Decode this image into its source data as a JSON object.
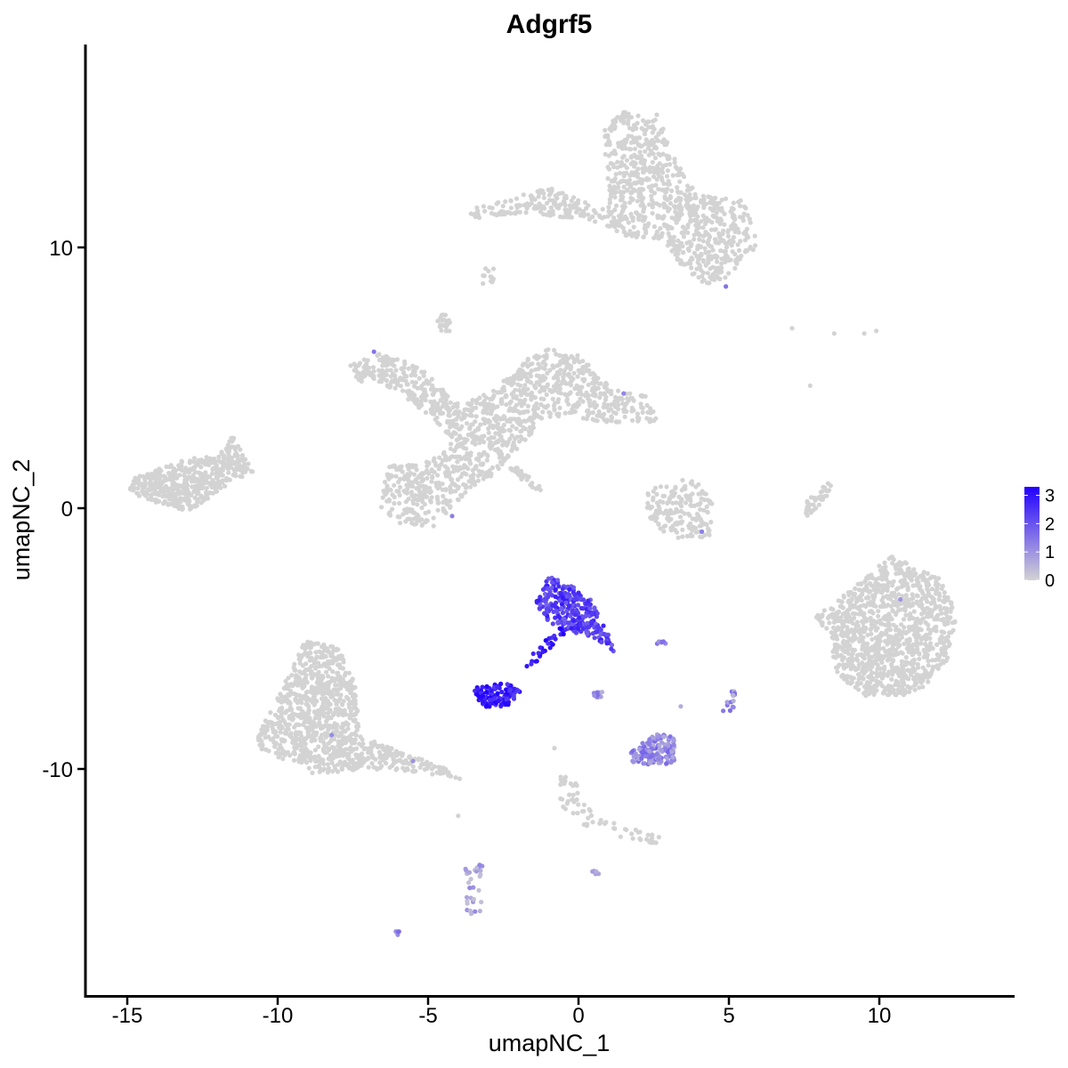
{
  "chart_data": {
    "type": "scatter",
    "title": "Adgrf5",
    "xlabel": "umapNC_1",
    "ylabel": "umapNC_2",
    "xlim": [
      -16.4,
      14.4
    ],
    "ylim": [
      -18.5,
      17.7
    ],
    "xticks": [
      -15,
      -10,
      -5,
      0,
      5,
      10
    ],
    "yticks": [
      -10,
      0,
      10
    ],
    "grid": false,
    "legend": {
      "placement": "right",
      "type": "continuous colorbar",
      "min": 0,
      "max": 3.3,
      "ticks": [
        0,
        1,
        2,
        3
      ],
      "low_color": "#d3d3d3",
      "high_color": "#2200ff"
    },
    "colors": {
      "low": "#d3d3d3",
      "high": "#2200ff",
      "point_size_note": "small dots"
    },
    "clusters": [
      {
        "id": "top-right-large",
        "expression": 0,
        "n": 1000,
        "shape": [
          [
            -3.6,
            11.5
          ],
          [
            -1,
            12.3
          ],
          [
            1,
            11.4
          ],
          [
            0.8,
            14.6
          ],
          [
            1.5,
            15.2
          ],
          [
            2.7,
            15.1
          ],
          [
            3.1,
            13.6
          ],
          [
            4,
            12
          ],
          [
            5.5,
            11.8
          ],
          [
            6,
            10.1
          ],
          [
            5.4,
            9.5
          ],
          [
            5,
            8.8
          ],
          [
            4.2,
            8.6
          ],
          [
            3.5,
            9.2
          ],
          [
            2.8,
            10.3
          ],
          [
            1.9,
            10.3
          ],
          [
            1.2,
            10.6
          ],
          [
            0.5,
            11
          ],
          [
            -1,
            11.2
          ],
          [
            -2.2,
            11.3
          ],
          [
            -3,
            11.2
          ],
          [
            -3.6,
            11
          ]
        ]
      },
      {
        "id": "left-far",
        "expression": 0,
        "n": 500,
        "shape": [
          [
            -14.9,
            1.1
          ],
          [
            -13,
            1.9
          ],
          [
            -12,
            2
          ],
          [
            -11.5,
            2.8
          ],
          [
            -10.8,
            1.4
          ],
          [
            -11.8,
            0.8
          ],
          [
            -12.5,
            0.2
          ],
          [
            -13,
            -0.1
          ],
          [
            -14,
            0.2
          ],
          [
            -14.9,
            0.6
          ]
        ]
      },
      {
        "id": "center-star",
        "expression": 0,
        "n": 1300,
        "shape": [
          [
            -7.6,
            5.5
          ],
          [
            -6.5,
            6
          ],
          [
            -5,
            5.2
          ],
          [
            -4,
            4
          ],
          [
            -3,
            4.4
          ],
          [
            -1.2,
            6.2
          ],
          [
            0,
            5.9
          ],
          [
            1,
            4.7
          ],
          [
            2.5,
            4.2
          ],
          [
            2.6,
            3.3
          ],
          [
            1,
            3.3
          ],
          [
            -1,
            3.5
          ],
          [
            -2.2,
            2.1
          ],
          [
            -3,
            1
          ],
          [
            -3.6,
            0.8
          ],
          [
            -4.3,
            -0.1
          ],
          [
            -4.8,
            -0.7
          ],
          [
            -6,
            -0.6
          ],
          [
            -6.6,
            0.1
          ],
          [
            -6.4,
            1.6
          ],
          [
            -5,
            1.8
          ],
          [
            -4.2,
            2.6
          ],
          [
            -4.9,
            3.5
          ],
          [
            -6.2,
            4.6
          ],
          [
            -7.4,
            4.9
          ]
        ]
      },
      {
        "id": "small-arc",
        "expression": 0,
        "n": 180,
        "shape": [
          [
            2.3,
            0.7
          ],
          [
            3.8,
            1.2
          ],
          [
            4.5,
            0.2
          ],
          [
            4.4,
            -1.1
          ],
          [
            3.2,
            -1.2
          ],
          [
            2.2,
            -0.4
          ]
        ]
      },
      {
        "id": "right-large",
        "expression": 0,
        "n": 1100,
        "shape": [
          [
            7.8,
            -4.2
          ],
          [
            9.2,
            -3
          ],
          [
            10.4,
            -1.8
          ],
          [
            12,
            -2.7
          ],
          [
            12.6,
            -4
          ],
          [
            12.3,
            -5.8
          ],
          [
            11.2,
            -7.2
          ],
          [
            9.4,
            -7.2
          ],
          [
            8.5,
            -6.2
          ],
          [
            8.4,
            -4.8
          ]
        ]
      },
      {
        "id": "bottom-left",
        "expression": 0,
        "n": 1000,
        "shape": [
          [
            -10.7,
            -8.8
          ],
          [
            -9.8,
            -6.8
          ],
          [
            -9.1,
            -5.1
          ],
          [
            -8,
            -5.3
          ],
          [
            -7.4,
            -6.7
          ],
          [
            -7.3,
            -8.7
          ],
          [
            -6,
            -9.3
          ],
          [
            -4.5,
            -9.9
          ],
          [
            -3.9,
            -10.4
          ],
          [
            -5.5,
            -10.1
          ],
          [
            -7,
            -10
          ],
          [
            -8.8,
            -10.2
          ],
          [
            -10.6,
            -9.2
          ]
        ]
      },
      {
        "id": "expressing-upper",
        "expression": 2.3,
        "n": 280,
        "shape": [
          [
            -1.4,
            -3.6
          ],
          [
            -1,
            -2.6
          ],
          [
            -0.2,
            -3
          ],
          [
            0.5,
            -3.6
          ],
          [
            0.7,
            -4.2
          ],
          [
            1,
            -4.8
          ],
          [
            1.2,
            -5.6
          ],
          [
            0.6,
            -5
          ],
          [
            -0.4,
            -4.7
          ],
          [
            -1.1,
            -4.3
          ]
        ]
      },
      {
        "id": "expressing-stalk",
        "expression": 3.0,
        "n": 28,
        "shape": [
          [
            -0.7,
            -4.6
          ],
          [
            -0.3,
            -4.6
          ],
          [
            -1.6,
            -6.2
          ],
          [
            -2.1,
            -6.3
          ]
        ]
      },
      {
        "id": "expressing-blob",
        "expression": 2.9,
        "n": 120,
        "shape": [
          [
            -3.5,
            -6.9
          ],
          [
            -2.4,
            -6.7
          ],
          [
            -1.9,
            -7
          ],
          [
            -2.2,
            -7.5
          ],
          [
            -3,
            -7.7
          ],
          [
            -3.5,
            -7.3
          ]
        ]
      },
      {
        "id": "mid-purple",
        "expression": 1.2,
        "n": 150,
        "shape": [
          [
            1.7,
            -9.4
          ],
          [
            2.5,
            -8.6
          ],
          [
            3.2,
            -8.8
          ],
          [
            3.2,
            -9.8
          ],
          [
            2.2,
            -9.9
          ],
          [
            1.7,
            -9.7
          ]
        ]
      },
      {
        "id": "gray-stem",
        "expression": 0,
        "n": 70,
        "shape": [
          [
            -0.6,
            -10
          ],
          [
            -0.2,
            -10.3
          ],
          [
            0.5,
            -11.8
          ],
          [
            2.7,
            -12.6
          ],
          [
            2.6,
            -12.9
          ],
          [
            0.2,
            -12.2
          ],
          [
            -0.6,
            -11.4
          ]
        ]
      },
      {
        "id": "lower-pale",
        "expression": 0.6,
        "n": 35,
        "shape": [
          [
            -3.8,
            -13.8
          ],
          [
            -3.2,
            -13.6
          ],
          [
            -3.2,
            -15.5
          ],
          [
            -3.7,
            -15.6
          ]
        ]
      },
      {
        "id": "upper-small",
        "expression": 0,
        "n": 25,
        "shape": [
          [
            -4.7,
            7.3
          ],
          [
            -4.3,
            7.6
          ],
          [
            -4.2,
            6.8
          ],
          [
            -4.6,
            6.7
          ]
        ]
      },
      {
        "id": "upper-small-2",
        "expression": 0,
        "n": 12,
        "shape": [
          [
            -3.2,
            9.2
          ],
          [
            -2.8,
            9.2
          ],
          [
            -2.8,
            8.6
          ],
          [
            -3.2,
            8.6
          ]
        ]
      },
      {
        "id": "thin-streak",
        "expression": 0,
        "n": 30,
        "shape": [
          [
            -2.2,
            1.7
          ],
          [
            -1.2,
            0.8
          ],
          [
            -1.3,
            0.6
          ],
          [
            -2.3,
            1.4
          ]
        ]
      },
      {
        "id": "right-thin",
        "expression": 0,
        "n": 40,
        "shape": [
          [
            7.6,
            0.3
          ],
          [
            8.5,
            1.2
          ],
          [
            8.2,
            0.3
          ],
          [
            7.5,
            -0.4
          ]
        ]
      },
      {
        "id": "small-right-purple",
        "expression": 1.0,
        "n": 15,
        "shape": [
          [
            4.8,
            -7.2
          ],
          [
            5.2,
            -6.9
          ],
          [
            5.2,
            -7.9
          ],
          [
            4.8,
            -7.8
          ]
        ]
      },
      {
        "id": "tiny-purple-1",
        "expression": 1.5,
        "n": 6,
        "shape": [
          [
            2.6,
            -5.1
          ],
          [
            2.9,
            -5.1
          ],
          [
            2.9,
            -5.2
          ],
          [
            2.6,
            -5.2
          ]
        ]
      },
      {
        "id": "tiny-gray-bottom",
        "expression": 0.5,
        "n": 5,
        "shape": [
          [
            0.4,
            -13.9
          ],
          [
            0.7,
            -13.9
          ],
          [
            0.7,
            -14.1
          ],
          [
            0.4,
            -14.1
          ]
        ]
      },
      {
        "id": "tiny-purple-2",
        "expression": 1.4,
        "n": 4,
        "shape": [
          [
            -6.1,
            -16.2
          ],
          [
            -5.9,
            -16.2
          ],
          [
            -5.9,
            -16.4
          ],
          [
            -6.1,
            -16.4
          ]
        ]
      },
      {
        "id": "tiny-purple-3",
        "expression": 1.0,
        "n": 10,
        "shape": [
          [
            0.5,
            -7
          ],
          [
            0.8,
            -7
          ],
          [
            0.8,
            -7.3
          ],
          [
            0.5,
            -7.3
          ]
        ]
      }
    ],
    "scattered_points": [
      {
        "x": 7.1,
        "y": 6.9,
        "expression": 0
      },
      {
        "x": 8.5,
        "y": 6.7,
        "expression": 0
      },
      {
        "x": 9.5,
        "y": 6.7,
        "expression": 0
      },
      {
        "x": 9.9,
        "y": 6.8,
        "expression": 0
      },
      {
        "x": 7.7,
        "y": 4.7,
        "expression": 0
      },
      {
        "x": 1.4,
        "y": -12.6,
        "expression": 0
      },
      {
        "x": 3.4,
        "y": -7.6,
        "expression": 0.6
      },
      {
        "x": -0.8,
        "y": -9.2,
        "expression": 0
      },
      {
        "x": -4.0,
        "y": -11.8,
        "expression": 0
      },
      {
        "x": 4.9,
        "y": 8.5,
        "expression": 1.5
      },
      {
        "x": -6.8,
        "y": 6.0,
        "expression": 1.5
      },
      {
        "x": 4.1,
        "y": -0.9,
        "expression": 1.3
      },
      {
        "x": -4.2,
        "y": -0.3,
        "expression": 1.3
      },
      {
        "x": 1.5,
        "y": 4.4,
        "expression": 1.2
      },
      {
        "x": -8.2,
        "y": -8.7,
        "expression": 1.1
      },
      {
        "x": -5.5,
        "y": -9.7,
        "expression": 1.0
      },
      {
        "x": 10.7,
        "y": -3.5,
        "expression": 1.0
      }
    ]
  }
}
